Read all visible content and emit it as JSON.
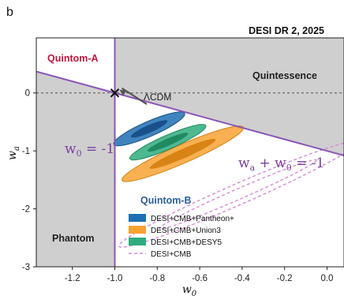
{
  "panel_label": "b",
  "chart_data": {
    "type": "contour",
    "title": "DESI DR 2, 2025",
    "xlabel": "w0",
    "ylabel": "wa",
    "xlim": [
      -1.37,
      0.08
    ],
    "ylim": [
      -3,
      0.95
    ],
    "xticks": [
      -1.2,
      -1.0,
      -0.8,
      -0.6,
      -0.4,
      -0.2,
      0.0
    ],
    "xtick_labels": [
      "-1.2",
      "-1.0",
      "-0.8",
      "-0.6",
      "-0.4",
      "-0.2",
      "0.0"
    ],
    "yticks": [
      0,
      -1,
      -2,
      -3
    ],
    "ytick_labels": [
      "0",
      "-1",
      "-2",
      "-3"
    ],
    "grid": false,
    "reference_point": {
      "label": "ΛCDM",
      "w0": -1.0,
      "wa": 0.0
    },
    "lines": [
      {
        "id": "w0_eq_-1",
        "label": "w0 = -1",
        "color": "#8a55b8"
      },
      {
        "id": "wa_plus_w0_eq_-1",
        "label": "wa + w0 = -1",
        "color": "#8a55b8"
      }
    ],
    "regions": [
      {
        "id": "quintom-a",
        "label": "Quintom-A",
        "color": "#c0143c"
      },
      {
        "id": "quintessence",
        "label": "Quintessence",
        "color": "#222222"
      },
      {
        "id": "phantom",
        "label": "Phantom",
        "color": "#222222"
      },
      {
        "id": "quintom-b",
        "label": "Quintom-B",
        "color": "#2b5e99"
      }
    ],
    "legend_position": "bottom-center",
    "series": [
      {
        "name": "DESI+CMB+Pantheon+",
        "color": "#1f6fb2",
        "style": "filled",
        "contours": [
          {
            "level": "2sigma",
            "center": [
              -0.838,
              -0.62
            ],
            "semi_major": 0.7,
            "semi_minor": 0.13
          },
          {
            "level": "1sigma",
            "center": [
              -0.838,
              -0.62
            ],
            "semi_major": 0.36,
            "semi_minor": 0.065
          }
        ]
      },
      {
        "name": "DESI+CMB+Union3",
        "color": "#f7a233",
        "style": "filled",
        "contours": [
          {
            "level": "2sigma",
            "center": [
              -0.68,
              -1.05
            ],
            "semi_major": 1.2,
            "semi_minor": 0.16
          },
          {
            "level": "1sigma",
            "center": [
              -0.68,
              -1.05
            ],
            "semi_major": 0.65,
            "semi_minor": 0.08
          }
        ]
      },
      {
        "name": "DESI+CMB+DESY5",
        "color": "#2fab7e",
        "style": "filled",
        "contours": [
          {
            "level": "2sigma",
            "center": [
              -0.75,
              -0.85
            ],
            "semi_major": 0.75,
            "semi_minor": 0.12
          },
          {
            "level": "1sigma",
            "center": [
              -0.75,
              -0.85
            ],
            "semi_major": 0.4,
            "semi_minor": 0.06
          }
        ]
      },
      {
        "name": "DESI+CMB",
        "color": "#d48ad6",
        "style": "dashed",
        "contours": [
          {
            "level": "2sigma",
            "center": [
              -0.42,
              -1.75
            ],
            "semi_major": 2.35,
            "semi_minor": 0.18
          },
          {
            "level": "1sigma",
            "center": [
              -0.42,
              -1.75
            ],
            "semi_major": 1.55,
            "semi_minor": 0.09
          }
        ]
      }
    ]
  }
}
